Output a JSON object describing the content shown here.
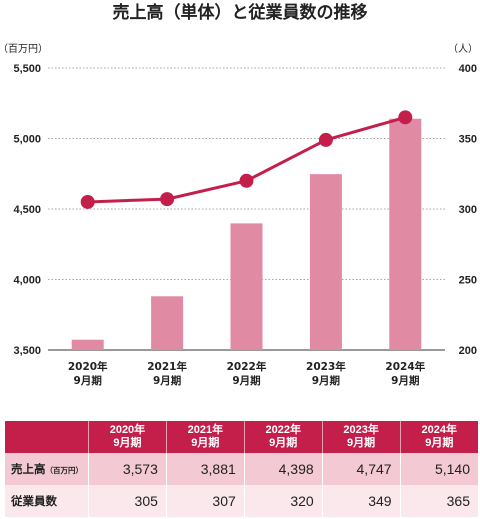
{
  "title": "売上高（単体）と従業員数の推移",
  "chart_data": {
    "type": "bar+line",
    "title": "売上高（単体）と従業員数の推移",
    "categories": [
      {
        "year": "2020年",
        "month": "9月期"
      },
      {
        "year": "2021年",
        "month": "9月期"
      },
      {
        "year": "2022年",
        "month": "9月期"
      },
      {
        "year": "2023年",
        "month": "9月期"
      },
      {
        "year": "2024年",
        "month": "9月期"
      }
    ],
    "bar_series": {
      "name": "売上高",
      "values": [
        3573,
        3881,
        4398,
        4747,
        5140
      ],
      "color": "#e08aa3"
    },
    "line_series": {
      "name": "従業員数",
      "values": [
        305,
        307,
        320,
        349,
        365
      ],
      "color": "#c41f4b"
    },
    "left_axis": {
      "unit": "（百万円）",
      "ylim": [
        3500,
        5500
      ],
      "ticks": [
        "3,500",
        "4,000",
        "4,500",
        "5,000",
        "5,500"
      ],
      "tick_values": [
        3500,
        4000,
        4500,
        5000,
        5500
      ]
    },
    "right_axis": {
      "unit": "（人）",
      "ylim": [
        200,
        400
      ],
      "ticks": [
        "200",
        "250",
        "300",
        "350",
        "400"
      ],
      "tick_values": [
        200,
        250,
        300,
        350,
        400
      ]
    },
    "grid": true,
    "grid_style": "dotted"
  },
  "table": {
    "headers": [
      {
        "line1": "2020年",
        "line2": "9月期"
      },
      {
        "line1": "2021年",
        "line2": "9月期"
      },
      {
        "line1": "2022年",
        "line2": "9月期"
      },
      {
        "line1": "2023年",
        "line2": "9月期"
      },
      {
        "line1": "2024年",
        "line2": "9月期"
      }
    ],
    "rows": [
      {
        "label": "売上高",
        "label_unit": "（百万円）",
        "values": [
          "3,573",
          "3,881",
          "4,398",
          "4,747",
          "5,140"
        ]
      },
      {
        "label": "従業員数",
        "label_unit": "",
        "values": [
          "305",
          "307",
          "320",
          "349",
          "365"
        ]
      }
    ]
  }
}
